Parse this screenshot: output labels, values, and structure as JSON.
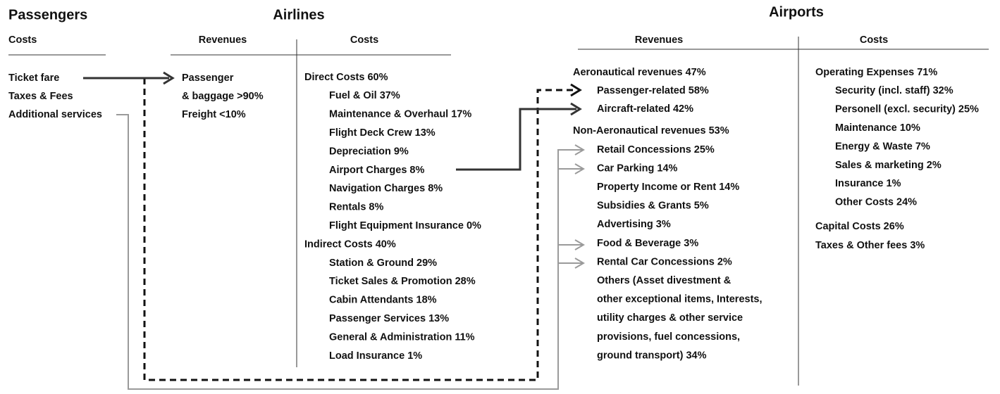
{
  "passengers": {
    "title": "Passengers",
    "costs": {
      "header": "Costs",
      "items": [
        "Ticket fare",
        "Taxes & Fees",
        "Additional services"
      ]
    }
  },
  "airlines": {
    "title": "Airlines",
    "revenues": {
      "header": "Revenues",
      "items": [
        "Passenger",
        "& baggage >90%",
        "Freight <10%"
      ]
    },
    "costs": {
      "header": "Costs",
      "groups": [
        {
          "label": "Direct Costs 60%",
          "items": [
            "Fuel & Oil 37%",
            "Maintenance & Overhaul 17%",
            "Flight Deck Crew 13%",
            "Depreciation 9%",
            "Airport Charges 8%",
            "Navigation Charges 8%",
            "Rentals 8%",
            "Flight Equipment Insurance 0%"
          ]
        },
        {
          "label": "Indirect Costs 40%",
          "items": [
            "Station & Ground 29%",
            "Ticket Sales & Promotion 28%",
            "Cabin Attendants 18%",
            "Passenger Services 13%",
            "General & Administration 11%",
            "Load Insurance 1%"
          ]
        }
      ]
    }
  },
  "airports": {
    "title": "Airports",
    "revenues": {
      "header": "Revenues",
      "groups": [
        {
          "label": "Aeronautical revenues 47%",
          "items": [
            "Passenger-related 58%",
            "Aircraft-related 42%"
          ]
        },
        {
          "label": "Non-Aeronautical revenues 53%",
          "items": [
            "Retail Concessions 25%",
            "Car Parking 14%",
            "Property Income or Rent 14%",
            "Subsidies & Grants 5%",
            "Advertising 3%",
            "Food & Beverage 3%",
            "Rental Car Concessions 2%",
            "Others (Asset divestment &",
            "other exceptional items, Interests,",
            "utility charges & other service",
            "provisions, fuel concessions,",
            "ground transport) 34%"
          ]
        }
      ]
    },
    "costs": {
      "header": "Costs",
      "groups": [
        {
          "label": "Operating Expenses 71%",
          "items": [
            "Security (incl. staff) 32%",
            "Personell (excl. security) 25%",
            "Maintenance 10%",
            "Energy & Waste 7%",
            "Sales & marketing 2%",
            "Insurance 1%",
            "Other Costs 24%"
          ]
        },
        {
          "label": "Capital Costs 26%"
        },
        {
          "label": "Taxes & Other fees 3%"
        }
      ]
    }
  }
}
